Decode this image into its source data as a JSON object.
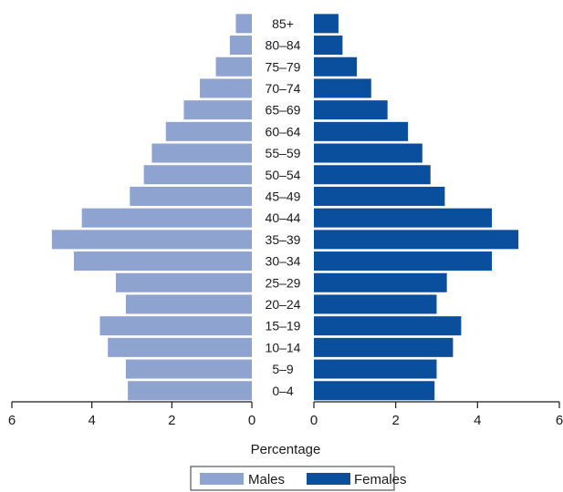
{
  "chart_data": {
    "type": "bar",
    "orientation": "horizontal-population-pyramid",
    "categories": [
      "0–4",
      "5–9",
      "10–14",
      "15–19",
      "20–24",
      "25–29",
      "30–34",
      "35–39",
      "40–44",
      "45–49",
      "50–54",
      "55–59",
      "60–64",
      "65–69",
      "70–74",
      "75–79",
      "80–84",
      "85+"
    ],
    "series": [
      {
        "name": "Males",
        "color": "#8fa3d0",
        "values": [
          3.1,
          3.15,
          3.6,
          3.8,
          3.15,
          3.4,
          4.45,
          5.0,
          4.25,
          3.05,
          2.7,
          2.5,
          2.15,
          1.7,
          1.3,
          0.9,
          0.55,
          0.4
        ]
      },
      {
        "name": "Females",
        "color": "#0a4f9e",
        "values": [
          2.95,
          3.0,
          3.4,
          3.6,
          3.0,
          3.25,
          4.35,
          5.0,
          4.35,
          3.2,
          2.85,
          2.65,
          2.3,
          1.8,
          1.4,
          1.05,
          0.7,
          0.6
        ]
      }
    ],
    "xlabel": "Percentage",
    "ylabel": "",
    "title": "",
    "xlim": [
      0,
      6
    ],
    "xticks": [
      "0",
      "2",
      "4",
      "6"
    ],
    "grid": false,
    "legend": "bottom-center"
  }
}
